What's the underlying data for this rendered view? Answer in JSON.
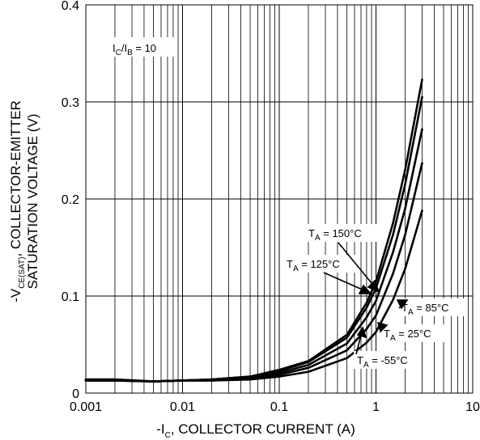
{
  "chart_data": {
    "type": "line",
    "xscale": "log",
    "xlim": [
      0.001,
      10
    ],
    "ylim": [
      0,
      0.4
    ],
    "grid": true,
    "x_ticks": [
      "0.001",
      "0.01",
      "0.1",
      "1",
      "10"
    ],
    "y_ticks": [
      "0",
      "0.1",
      "0.2",
      "0.3",
      "0.4"
    ],
    "xlabel": {
      "pre": "-I",
      "sub": "C",
      "post": ", COLLECTOR CURRENT (A)"
    },
    "ylabel": {
      "line1_pre": "-V",
      "line1_sub": "CE(SAT)",
      "line1_post": ", COLLECTOR-EMITTER",
      "line2": "SATURATION VOLTAGE (V)"
    },
    "condition": {
      "i1": "I",
      "sub1": "C",
      "slash": "/I",
      "sub2": "B",
      "post": " = 10"
    },
    "series": [
      {
        "name": "TA = 150°C",
        "label": {
          "pre": "T",
          "sub": "A",
          "post": " = 150°C"
        },
        "x": [
          0.001,
          0.002,
          0.005,
          0.01,
          0.02,
          0.05,
          0.1,
          0.2,
          0.5,
          0.8,
          1.0,
          1.5,
          2.0,
          3.0
        ],
        "y": [
          0.014,
          0.014,
          0.012,
          0.013,
          0.014,
          0.017,
          0.024,
          0.033,
          0.06,
          0.093,
          0.115,
          0.175,
          0.23,
          0.323
        ]
      },
      {
        "name": "TA = 125°C",
        "label": {
          "pre": "T",
          "sub": "A",
          "post": " = 125°C"
        },
        "x": [
          0.001,
          0.002,
          0.005,
          0.01,
          0.02,
          0.05,
          0.1,
          0.2,
          0.5,
          0.8,
          1.0,
          1.5,
          2.0,
          3.0
        ],
        "y": [
          0.014,
          0.014,
          0.012,
          0.013,
          0.014,
          0.017,
          0.023,
          0.032,
          0.057,
          0.088,
          0.108,
          0.163,
          0.215,
          0.305
        ]
      },
      {
        "name": "TA = 85°C",
        "label": {
          "pre": "T",
          "sub": "A",
          "post": " = 85°C"
        },
        "x": [
          0.001,
          0.002,
          0.005,
          0.01,
          0.02,
          0.05,
          0.1,
          0.2,
          0.5,
          0.8,
          1.0,
          1.5,
          2.0,
          3.0
        ],
        "y": [
          0.013,
          0.013,
          0.012,
          0.013,
          0.014,
          0.016,
          0.021,
          0.029,
          0.051,
          0.078,
          0.095,
          0.145,
          0.19,
          0.272
        ]
      },
      {
        "name": "TA = 25°C",
        "label": {
          "pre": "T",
          "sub": "A",
          "post": " = 25°C"
        },
        "x": [
          0.001,
          0.002,
          0.005,
          0.01,
          0.02,
          0.05,
          0.1,
          0.2,
          0.5,
          0.8,
          1.0,
          1.5,
          2.0,
          3.0
        ],
        "y": [
          0.013,
          0.013,
          0.012,
          0.013,
          0.013,
          0.015,
          0.019,
          0.026,
          0.044,
          0.066,
          0.08,
          0.123,
          0.163,
          0.237
        ]
      },
      {
        "name": "TA = -55°C",
        "label": {
          "pre": "T",
          "sub": "A",
          "post": " = -55°C"
        },
        "x": [
          0.001,
          0.002,
          0.005,
          0.01,
          0.02,
          0.05,
          0.1,
          0.2,
          0.5,
          0.8,
          1.0,
          1.5,
          2.0,
          3.0
        ],
        "y": [
          0.013,
          0.013,
          0.012,
          0.013,
          0.013,
          0.014,
          0.017,
          0.022,
          0.036,
          0.052,
          0.063,
          0.096,
          0.128,
          0.188
        ]
      }
    ]
  }
}
